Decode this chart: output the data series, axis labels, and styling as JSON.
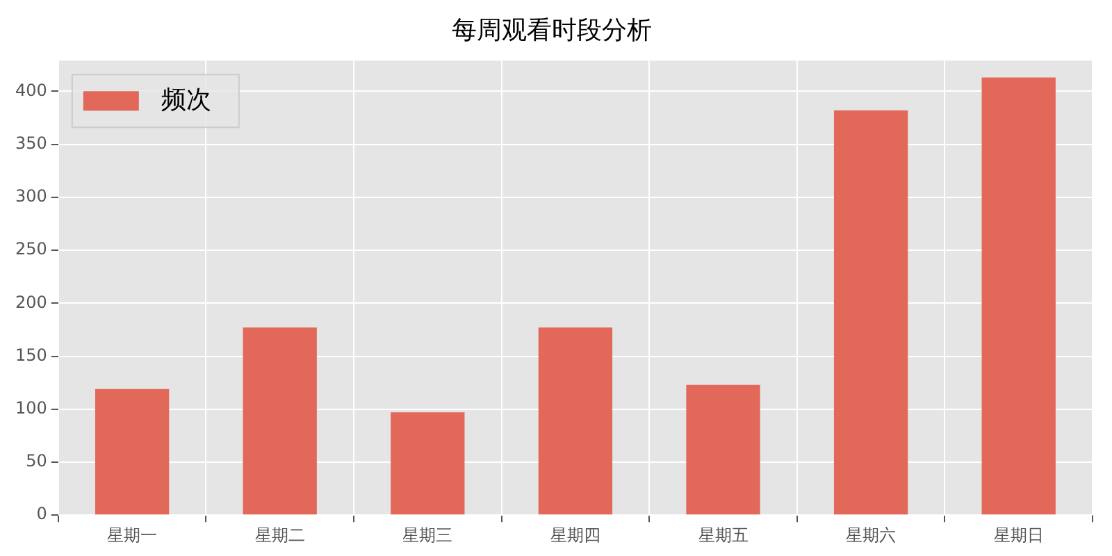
{
  "chart_data": {
    "type": "bar",
    "title": "每周观看时段分析",
    "categories": [
      "星期一",
      "星期二",
      "星期三",
      "星期四",
      "星期五",
      "星期六",
      "星期日"
    ],
    "series": [
      {
        "name": "频次",
        "color": "#e2685a",
        "values": [
          119,
          177,
          97,
          177,
          123,
          382,
          413
        ]
      }
    ],
    "ylim": [
      0,
      429
    ],
    "yticks": [
      0,
      50,
      100,
      150,
      200,
      250,
      300,
      350,
      400
    ],
    "grid": true,
    "legend": "top left"
  }
}
